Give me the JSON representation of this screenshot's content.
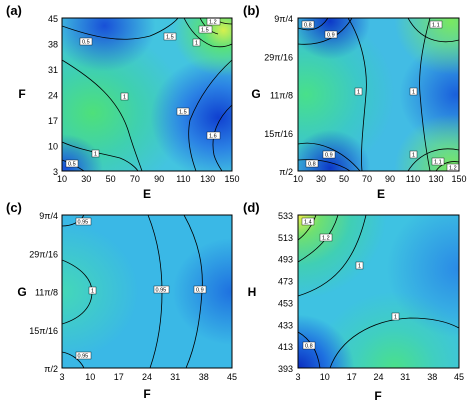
{
  "chart_data": [
    {
      "type": "heatmap",
      "panel": "(a)",
      "xlabel": "E",
      "ylabel": "F",
      "x_ticks": [
        "10",
        "30",
        "50",
        "70",
        "90",
        "110",
        "130",
        "150"
      ],
      "y_ticks": [
        "3",
        "10",
        "17",
        "24",
        "31",
        "38",
        "45"
      ],
      "x_range": [
        10,
        150
      ],
      "y_range": [
        3,
        45
      ],
      "contour_labels": [
        "0.5",
        "0.5",
        "1",
        "1",
        "1",
        "1.2",
        "1.5",
        "1.5",
        "1.5",
        "1.6"
      ],
      "colormap": [
        "#0a2fc8",
        "#1e7fe8",
        "#3ec8e6",
        "#39e09a",
        "#f2f04a"
      ]
    },
    {
      "type": "heatmap",
      "panel": "(b)",
      "xlabel": "E",
      "ylabel": "G",
      "x_ticks": [
        "10",
        "30",
        "50",
        "70",
        "90",
        "110",
        "130",
        "150"
      ],
      "y_ticks": [
        "π/2",
        "15π/16",
        "11π/8",
        "29π/16",
        "9π/4"
      ],
      "x_range": [
        10,
        150
      ],
      "y_range": [
        "π/2",
        "9π/4"
      ],
      "contour_labels": [
        "0.8",
        "0.9",
        "0.9",
        "0.8",
        "1",
        "1",
        "1",
        "1.1",
        "1.1",
        "1.2"
      ],
      "colormap": [
        "#0a2fc8",
        "#1e7fe8",
        "#3ec8e6",
        "#39e09a",
        "#f2f04a"
      ]
    },
    {
      "type": "heatmap",
      "panel": "(c)",
      "xlabel": "F",
      "ylabel": "G",
      "x_ticks": [
        "3",
        "10",
        "17",
        "24",
        "31",
        "38",
        "45"
      ],
      "y_ticks": [
        "π/2",
        "15π/16",
        "11π/8",
        "29π/16",
        "9π/4"
      ],
      "x_range": [
        3,
        45
      ],
      "y_range": [
        "π/2",
        "9π/4"
      ],
      "contour_labels": [
        "0.95",
        "1",
        "0.95",
        "0.95",
        "0.9"
      ],
      "colormap": [
        "#0a2fc8",
        "#1e7fe8",
        "#3ec8e6",
        "#39e09a",
        "#f2f04a"
      ]
    },
    {
      "type": "heatmap",
      "panel": "(d)",
      "xlabel": "F",
      "ylabel": "H",
      "x_ticks": [
        "3",
        "10",
        "17",
        "24",
        "31",
        "38",
        "45"
      ],
      "y_ticks": [
        "393",
        "413",
        "433",
        "453",
        "473",
        "493",
        "513",
        "533"
      ],
      "x_range": [
        3,
        45
      ],
      "y_range": [
        393,
        533
      ],
      "contour_labels": [
        "1.4",
        "1.2",
        "1",
        "1",
        "0.8"
      ],
      "colormap": [
        "#0a2fc8",
        "#1e7fe8",
        "#3ec8e6",
        "#39e09a",
        "#f2f04a"
      ]
    }
  ]
}
